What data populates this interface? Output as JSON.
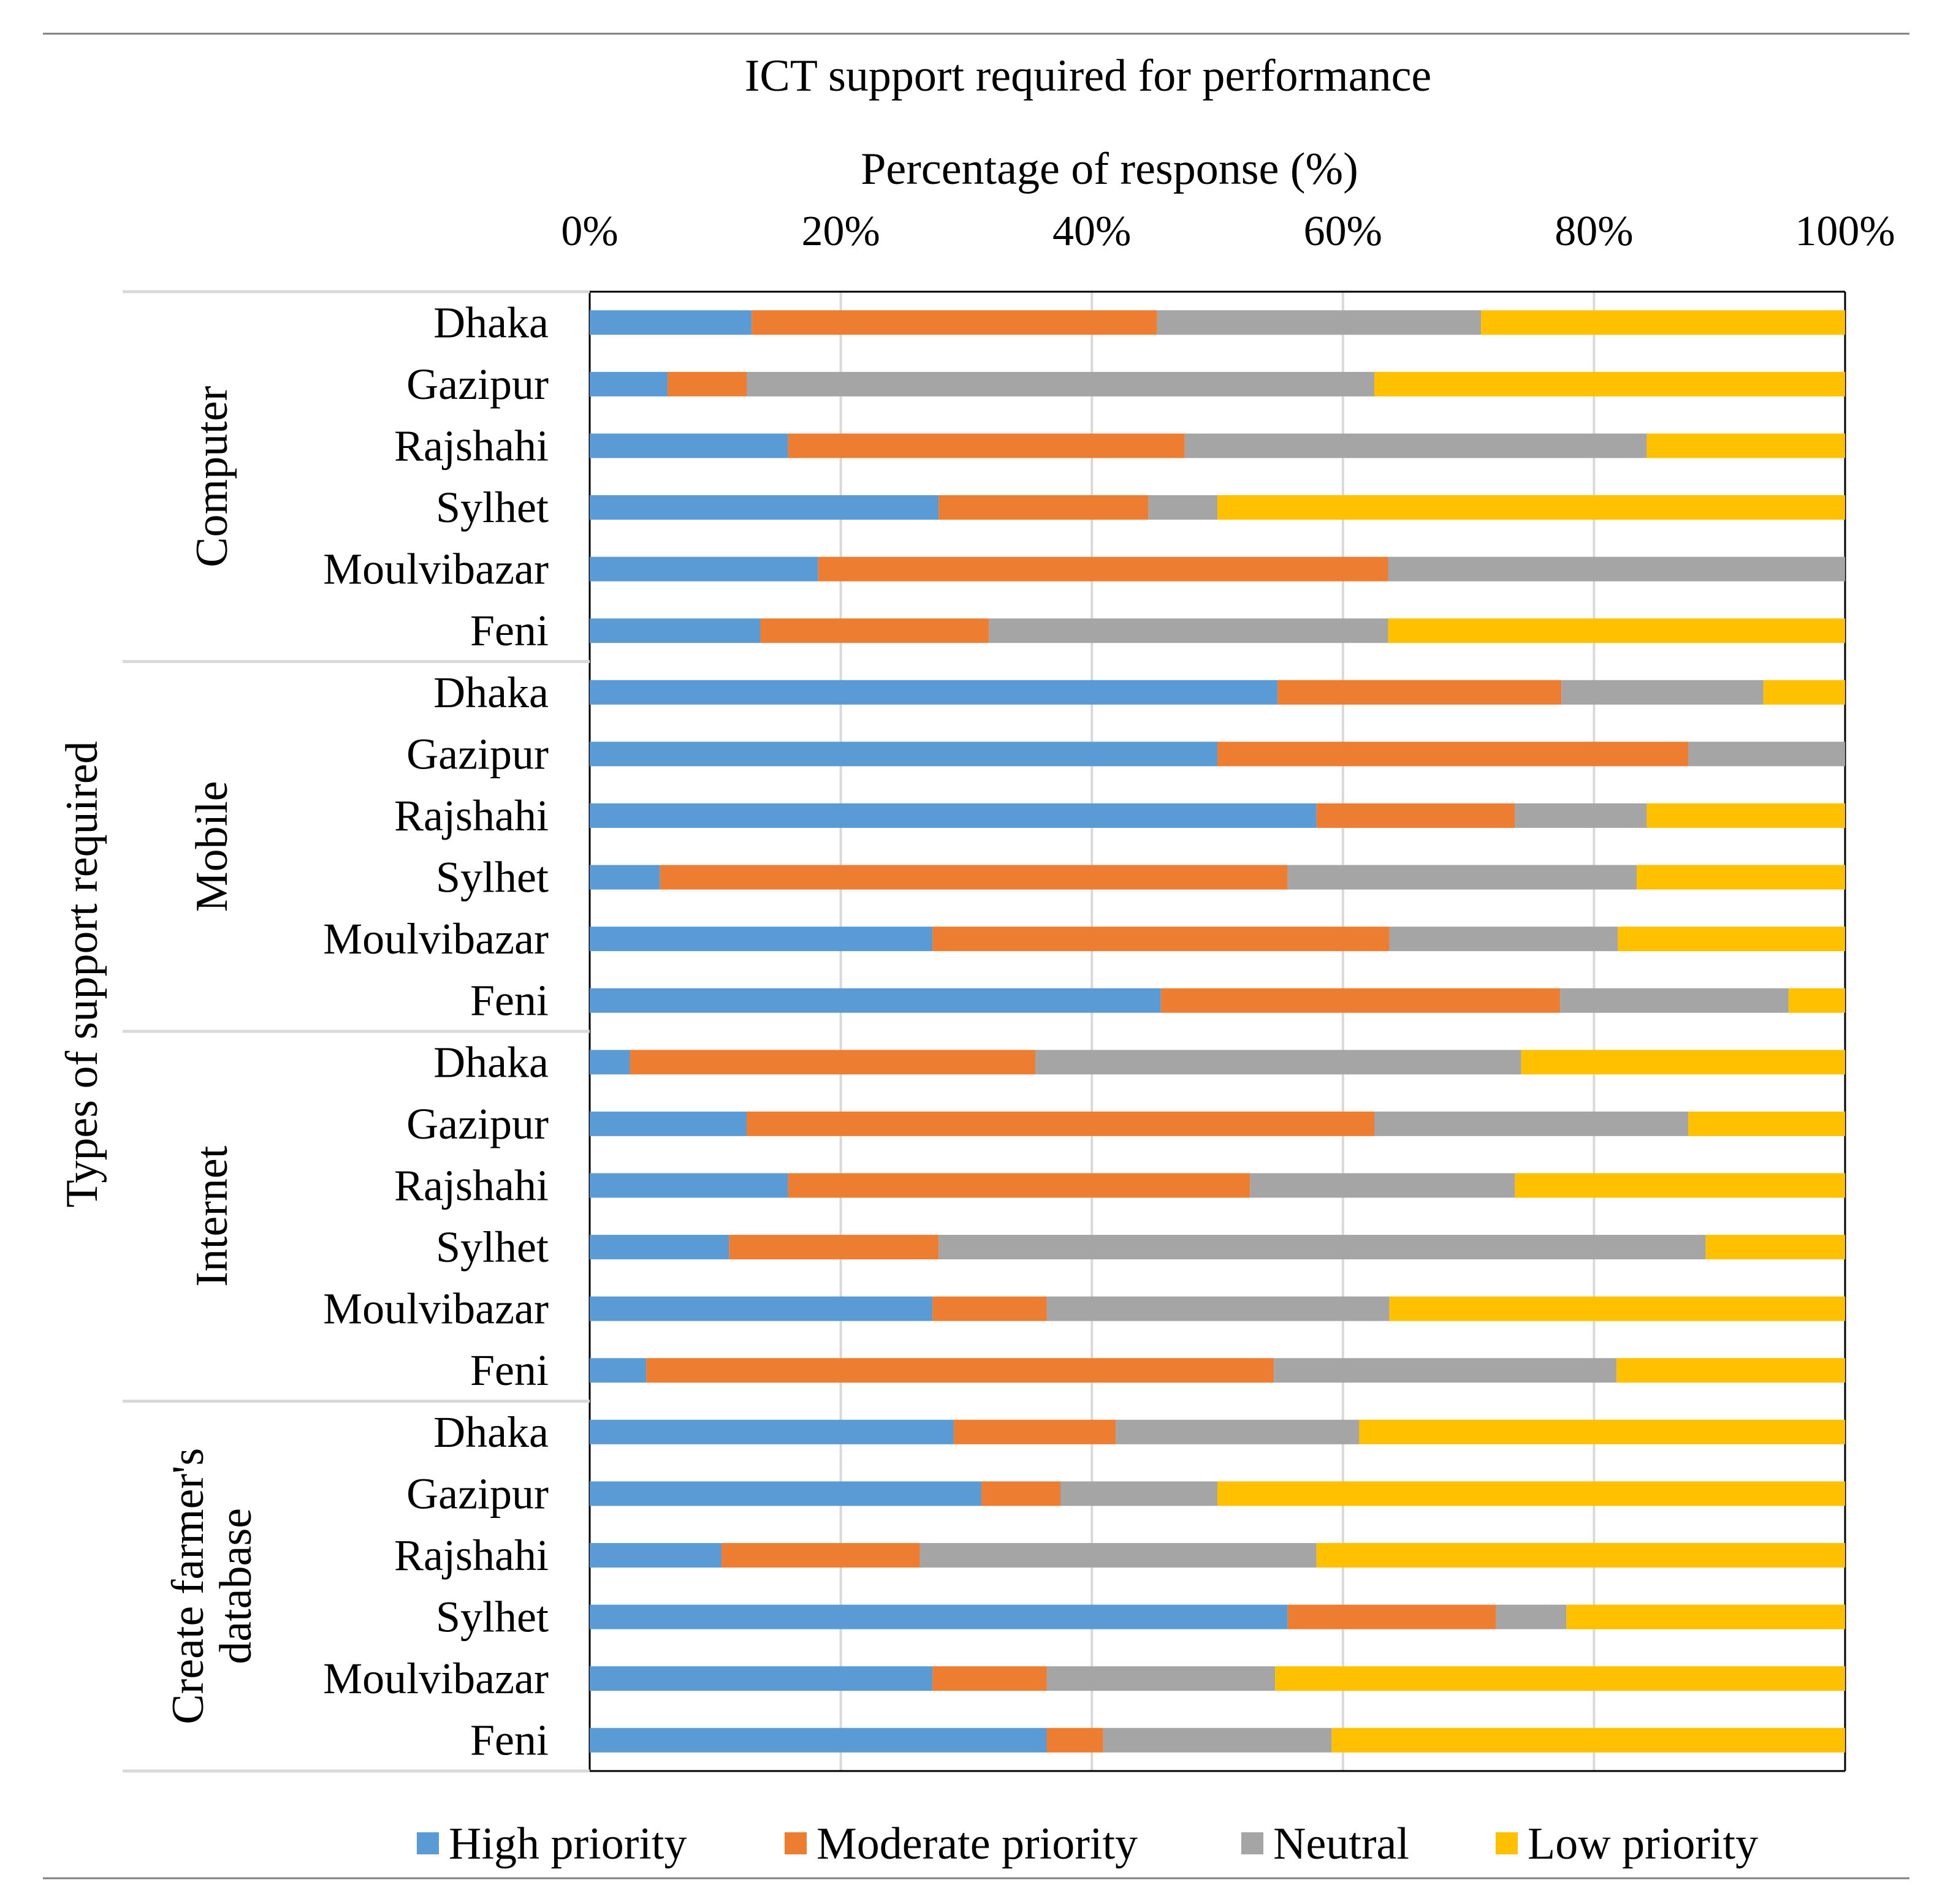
{
  "chart_data": {
    "type": "bar",
    "orientation": "horizontal",
    "stacked": "percent",
    "title": "ICT support required for performance",
    "xlabel": "Percentage of response (%)",
    "ylabel": "Types of support required",
    "xlim": [
      0,
      100
    ],
    "x_ticks": [
      "0%",
      "20%",
      "40%",
      "60%",
      "80%",
      "100%"
    ],
    "x_axis_position": "top",
    "grid": "vertical",
    "legend_position": "bottom",
    "colors": {
      "High priority": "#5B9BD5",
      "Moderate priority": "#ED7D31",
      "Neutral": "#A5A5A5",
      "Low priority": "#FFC000"
    },
    "series_names": [
      "High priority",
      "Moderate priority",
      "Neutral",
      "Low priority"
    ],
    "groups": [
      {
        "name": "Computer",
        "categories": [
          "Dhaka",
          "Gazipur",
          "Rajshahi",
          "Sylhet",
          "Moulvibazar",
          "Feni"
        ],
        "values": [
          [
            12.9,
            32.3,
            25.8,
            29.0
          ],
          [
            6.2,
            6.3,
            50.0,
            37.5
          ],
          [
            15.8,
            31.6,
            36.8,
            15.8
          ],
          [
            27.8,
            16.7,
            5.5,
            50.0
          ],
          [
            18.2,
            45.4,
            36.4,
            0
          ],
          [
            13.6,
            18.2,
            31.8,
            36.4
          ]
        ]
      },
      {
        "name": "Mobile",
        "categories": [
          "Dhaka",
          "Gazipur",
          "Rajshahi",
          "Sylhet",
          "Moulvibazar",
          "Feni"
        ],
        "values": [
          [
            54.8,
            22.6,
            16.1,
            6.5
          ],
          [
            50.0,
            37.5,
            12.5,
            0
          ],
          [
            57.9,
            15.8,
            10.5,
            15.8
          ],
          [
            5.6,
            50.0,
            27.8,
            16.6
          ],
          [
            27.3,
            36.4,
            18.2,
            18.1
          ],
          [
            45.5,
            31.8,
            18.2,
            4.5
          ]
        ]
      },
      {
        "name": "Internet",
        "categories": [
          "Dhaka",
          "Gazipur",
          "Rajshahi",
          "Sylhet",
          "Moulvibazar",
          "Feni"
        ],
        "values": [
          [
            3.2,
            32.3,
            38.7,
            25.8
          ],
          [
            12.5,
            50.0,
            25.0,
            12.5
          ],
          [
            15.8,
            36.8,
            21.1,
            26.3
          ],
          [
            11.1,
            16.7,
            61.1,
            11.1
          ],
          [
            27.3,
            9.1,
            27.3,
            36.3
          ],
          [
            4.5,
            50.0,
            27.3,
            18.2
          ]
        ]
      },
      {
        "name": "Create farmer's database",
        "name_lines": [
          "Create farmer's",
          "database"
        ],
        "categories": [
          "Dhaka",
          "Gazipur",
          "Rajshahi",
          "Sylhet",
          "Moulvibazar",
          "Feni"
        ],
        "values": [
          [
            29.0,
            12.9,
            19.4,
            38.7
          ],
          [
            31.2,
            6.3,
            12.5,
            50.0
          ],
          [
            10.5,
            15.8,
            31.6,
            42.1
          ],
          [
            55.6,
            16.6,
            5.6,
            22.2
          ],
          [
            27.3,
            9.1,
            18.2,
            45.4
          ],
          [
            36.4,
            4.5,
            18.2,
            40.9
          ]
        ]
      }
    ]
  }
}
